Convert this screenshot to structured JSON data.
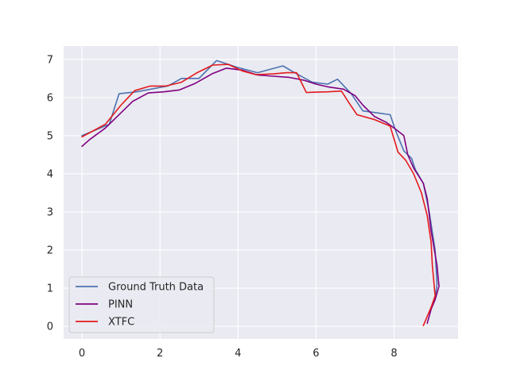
{
  "chart_data": {
    "type": "line",
    "title": "",
    "xlabel": "",
    "ylabel": "",
    "xlim": [
      -0.47,
      9.64
    ],
    "ylim": [
      -0.33,
      7.35
    ],
    "xticks": [
      0,
      2,
      4,
      6,
      8
    ],
    "yticks": [
      0,
      1,
      2,
      3,
      4,
      5,
      6,
      7
    ],
    "grid": true,
    "legend_position": "bottom-left",
    "background_color": "#eaeaf2",
    "grid_color": "#ffffff",
    "series": [
      {
        "name": "Ground Truth Data",
        "color": "#4c72b0",
        "x": [
          0,
          0.7,
          0.95,
          1.4,
          2.2,
          2.55,
          3.0,
          3.45,
          3.95,
          4.5,
          5.15,
          5.45,
          5.9,
          6.3,
          6.55,
          6.9,
          7.2,
          7.55,
          7.9,
          8.05,
          8.25,
          8.45,
          8.55,
          8.75,
          8.9,
          9.05,
          9.1,
          9.05,
          8.95
        ],
        "y": [
          5.0,
          5.3,
          6.1,
          6.15,
          6.3,
          6.5,
          6.5,
          6.97,
          6.8,
          6.65,
          6.83,
          6.65,
          6.4,
          6.35,
          6.48,
          6.1,
          5.65,
          5.6,
          5.55,
          5.1,
          4.6,
          4.4,
          4.1,
          3.75,
          3.0,
          2.0,
          1.1,
          0.75,
          0.45
        ]
      },
      {
        "name": "PINN",
        "color": "#800080",
        "x": [
          0,
          0.2,
          0.6,
          0.9,
          1.3,
          1.7,
          2.1,
          2.5,
          2.9,
          3.35,
          3.7,
          4.1,
          4.5,
          4.9,
          5.3,
          5.7,
          6.0,
          6.3,
          6.7,
          7.0,
          7.2,
          7.5,
          7.8,
          8.0,
          8.25,
          8.35,
          8.5,
          8.75,
          8.85,
          8.95,
          9.1,
          9.15,
          9.05,
          8.95,
          8.85
        ],
        "y": [
          4.72,
          4.9,
          5.2,
          5.5,
          5.9,
          6.12,
          6.15,
          6.2,
          6.37,
          6.63,
          6.77,
          6.72,
          6.59,
          6.56,
          6.53,
          6.45,
          6.35,
          6.28,
          6.22,
          6.05,
          5.8,
          5.5,
          5.35,
          5.2,
          5.0,
          4.5,
          4.15,
          3.75,
          3.35,
          2.5,
          1.6,
          1.05,
          0.7,
          0.45,
          0.08
        ]
      },
      {
        "name": "XTFC",
        "color": "#e31a1c",
        "x": [
          0,
          0.6,
          1.0,
          1.35,
          1.75,
          2.15,
          2.55,
          2.95,
          3.35,
          3.75,
          4.1,
          4.45,
          4.9,
          5.25,
          5.5,
          5.75,
          6.0,
          6.3,
          6.65,
          6.85,
          7.05,
          7.5,
          7.9,
          8.1,
          8.3,
          8.5,
          8.7,
          8.85,
          8.95,
          8.98,
          9.05,
          8.95,
          8.75
        ],
        "y": [
          4.97,
          5.3,
          5.8,
          6.18,
          6.3,
          6.3,
          6.4,
          6.65,
          6.85,
          6.87,
          6.7,
          6.6,
          6.62,
          6.65,
          6.65,
          6.13,
          6.14,
          6.15,
          6.17,
          5.85,
          5.55,
          5.42,
          5.25,
          4.57,
          4.35,
          4.0,
          3.5,
          2.9,
          2.2,
          1.6,
          0.8,
          0.5,
          0.02
        ]
      }
    ]
  }
}
